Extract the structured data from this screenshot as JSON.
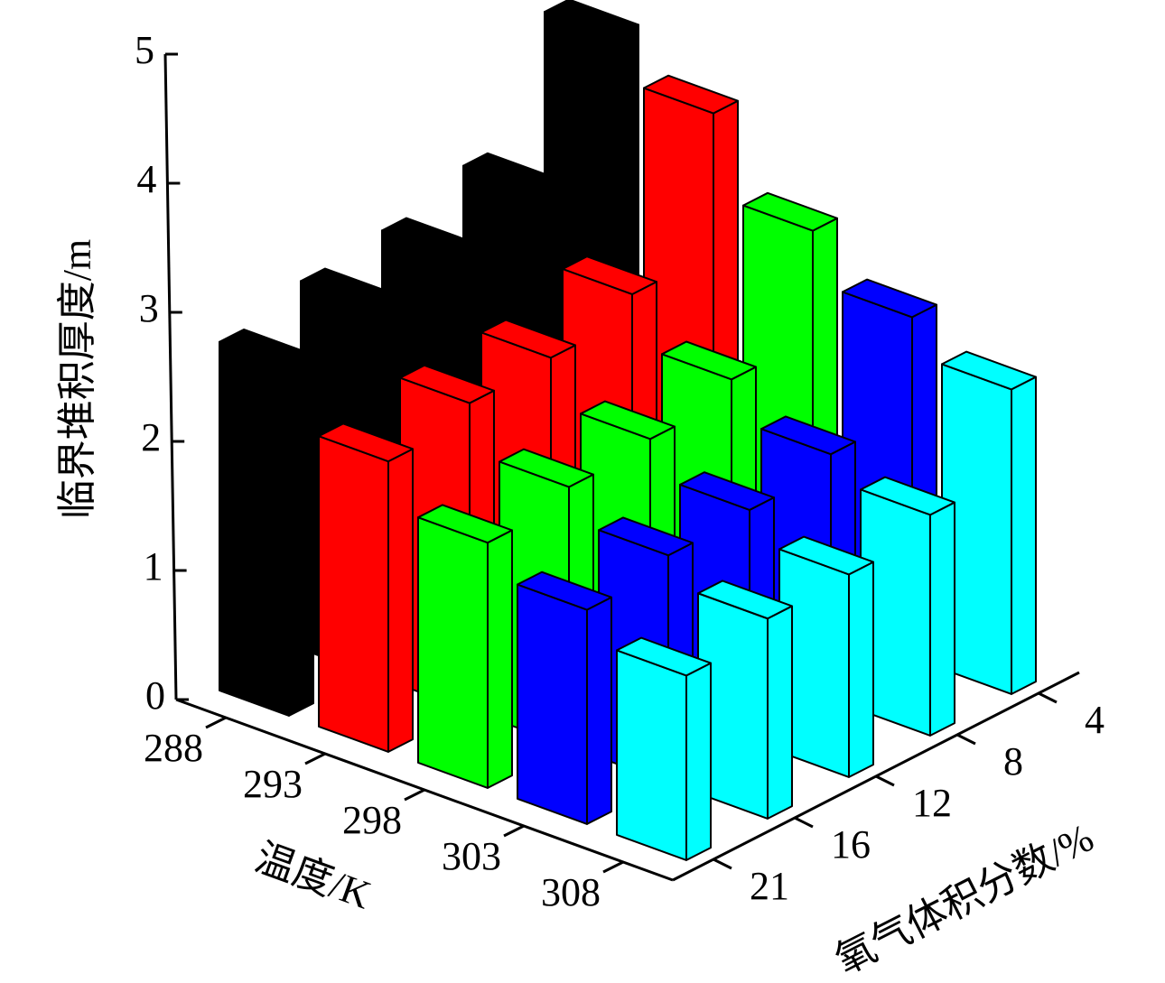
{
  "chart_data": {
    "type": "bar3d",
    "ylabel": "临界堆积厚度/m",
    "xlabel": "温度/K",
    "zlabel": "氧气体积分数/%",
    "categories": [
      "21",
      "16",
      "12",
      "8",
      "4"
    ],
    "series": [
      {
        "name": "288",
        "color": "#000000",
        "values": [
          2.7,
          2.85,
          2.92,
          3.1,
          3.97
        ]
      },
      {
        "name": "293",
        "color": "#ff0000",
        "values": [
          2.25,
          2.38,
          2.41,
          2.58,
          3.66
        ]
      },
      {
        "name": "298",
        "color": "#00ff00",
        "values": [
          1.9,
          2.01,
          2.06,
          2.2,
          3.03
        ]
      },
      {
        "name": "303",
        "color": "#0000ff",
        "values": [
          1.66,
          1.76,
          1.79,
          1.9,
          2.64
        ]
      },
      {
        "name": "308",
        "color": "#00ffff",
        "values": [
          1.43,
          1.55,
          1.57,
          1.71,
          2.36
        ]
      }
    ],
    "ylim": [
      0,
      5
    ],
    "yticks": [
      0,
      1,
      2,
      3,
      4,
      5
    ]
  }
}
